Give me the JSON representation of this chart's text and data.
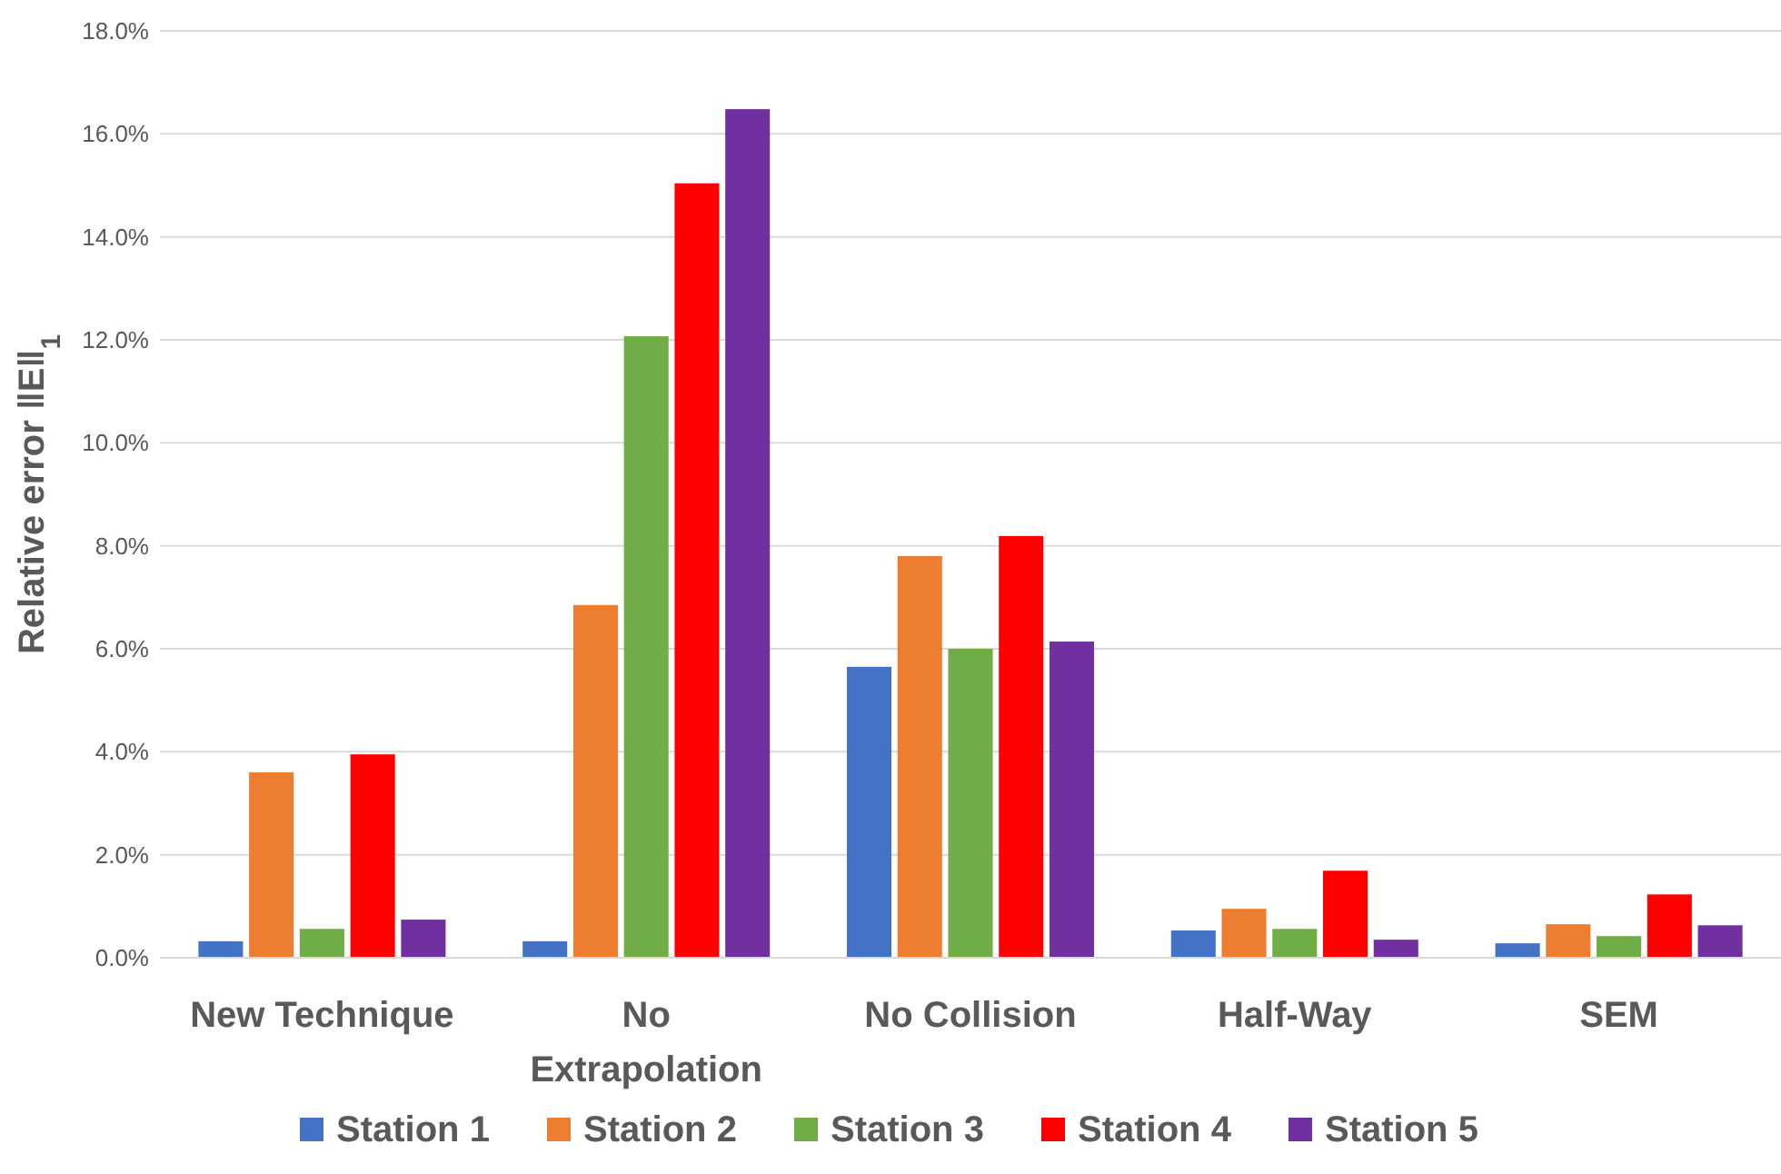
{
  "chart_data": {
    "type": "bar",
    "ylabel": "Relative error ‖E‖$_{1}$",
    "categories": [
      "New Technique",
      "No Extrapolation",
      "No Collision",
      "Half-Way",
      "SEM"
    ],
    "series": [
      {
        "name": "Station 1",
        "color": "#4472c4",
        "values": [
          0.32,
          0.32,
          5.65,
          0.53,
          0.28
        ]
      },
      {
        "name": "Station 2",
        "color": "#ed7d31",
        "values": [
          3.6,
          6.85,
          7.8,
          0.95,
          0.65
        ]
      },
      {
        "name": "Station 3",
        "color": "#70ad47",
        "values": [
          0.56,
          12.07,
          6.0,
          0.56,
          0.42
        ]
      },
      {
        "name": "Station 4",
        "color": "#ff0000",
        "values": [
          3.95,
          15.04,
          8.19,
          1.69,
          1.23
        ]
      },
      {
        "name": "Station 5",
        "color": "#7030a0",
        "values": [
          0.74,
          16.48,
          6.14,
          0.35,
          0.63
        ]
      }
    ],
    "ylim": [
      0,
      18
    ],
    "yticks": [
      {
        "value": 0,
        "label": "0.0%"
      },
      {
        "value": 2,
        "label": "2.0%"
      },
      {
        "value": 4,
        "label": "4.0%"
      },
      {
        "value": 6,
        "label": "6.0%"
      },
      {
        "value": 8,
        "label": "8.0%"
      },
      {
        "value": 10,
        "label": "10.0%"
      },
      {
        "value": 12,
        "label": "12.0%"
      },
      {
        "value": 14,
        "label": "14.0%"
      },
      {
        "value": 16,
        "label": "16.0%"
      },
      {
        "value": 18,
        "label": "18.0%"
      }
    ],
    "grid": "y",
    "legend": "bottom"
  }
}
